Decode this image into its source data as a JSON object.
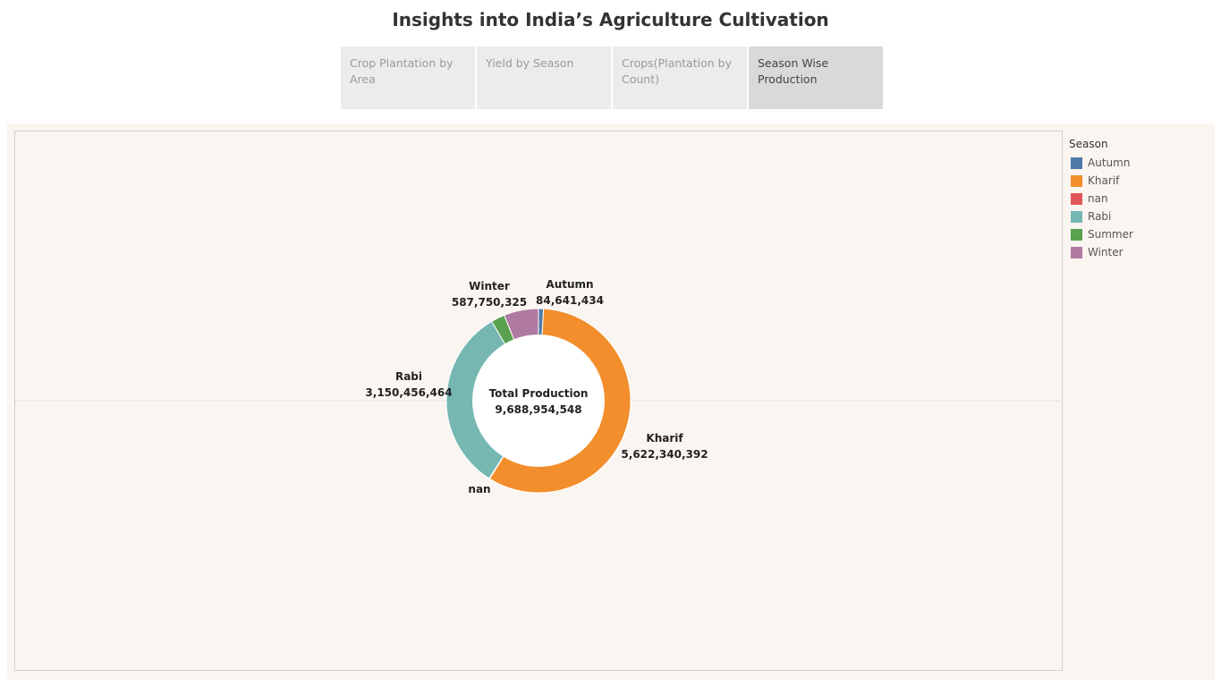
{
  "header": {
    "title": "Insights into India’s Agriculture Cultivation"
  },
  "tabs": [
    {
      "label": "Crop Plantation by Area",
      "active": false
    },
    {
      "label": "Yield by Season",
      "active": false
    },
    {
      "label": "Crops(Plantation by Count)",
      "active": false
    },
    {
      "label": "Season Wise Production",
      "active": true
    }
  ],
  "legend": {
    "title": "Season",
    "items": [
      {
        "label": "Autumn",
        "color": "#4e79a7"
      },
      {
        "label": "Kharif",
        "color": "#f28e2b"
      },
      {
        "label": "nan",
        "color": "#e15759"
      },
      {
        "label": "Rabi",
        "color": "#76b7b2"
      },
      {
        "label": "Summer",
        "color": "#59a14f"
      },
      {
        "label": "Winter",
        "color": "#b07aa1"
      }
    ]
  },
  "chart_data": {
    "type": "pie",
    "title": "",
    "center_label": "Total Production",
    "center_value": "9,688,954,548",
    "slices": [
      {
        "name": "Autumn",
        "value": 84641434,
        "label": "84,641,434",
        "color": "#4e79a7"
      },
      {
        "name": "Kharif",
        "value": 5622340392,
        "label": "5,622,340,392",
        "color": "#f28e2b"
      },
      {
        "name": "nan",
        "value": 9000000,
        "label": "",
        "color": "#e15759"
      },
      {
        "name": "Rabi",
        "value": 3150456464,
        "label": "3,150,456,464",
        "color": "#76b7b2"
      },
      {
        "name": "Summer",
        "value": 234765933,
        "label": "",
        "color": "#59a14f"
      },
      {
        "name": "Winter",
        "value": 587750325,
        "label": "587,750,325",
        "color": "#b07aa1"
      }
    ],
    "legend_position": "right"
  }
}
